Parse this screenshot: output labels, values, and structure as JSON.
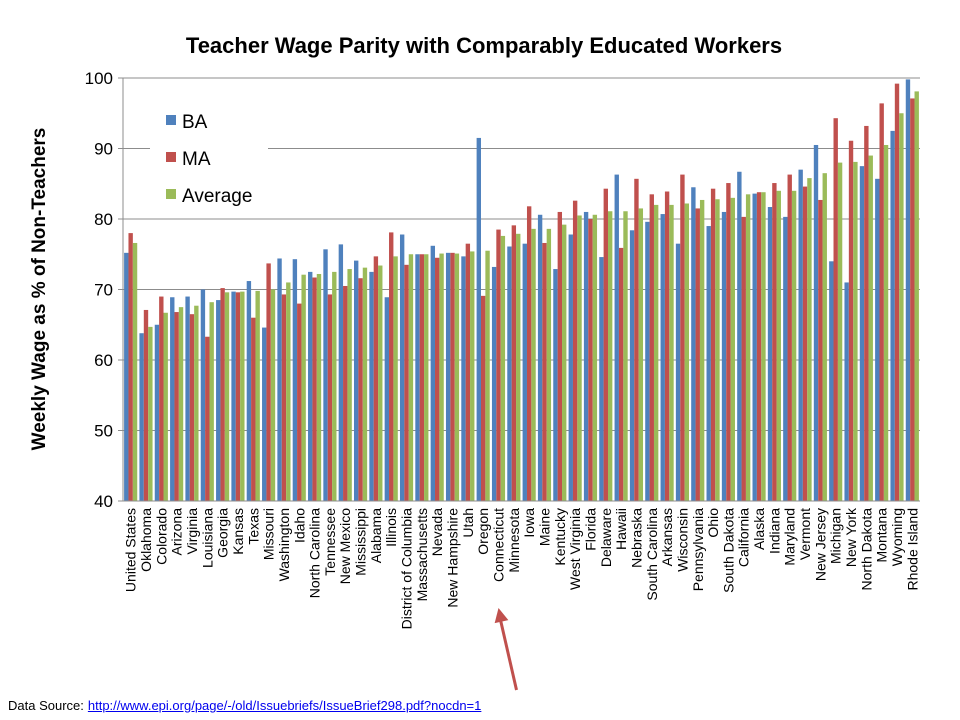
{
  "chart_data": {
    "type": "bar",
    "title": "Teacher Wage Parity with Comparably Educated Workers",
    "ylabel": "Weekly Wage as % of Non-Teachers",
    "xlabel": "",
    "ylim": [
      40,
      100
    ],
    "yticks": [
      40,
      50,
      60,
      70,
      80,
      90,
      100
    ],
    "grid": true,
    "legend_position": "top-left",
    "categories": [
      "United States",
      "Oklahoma",
      "Colorado",
      "Arizona",
      "Virginia",
      "Louisiana",
      "Georgia",
      "Kansas",
      "Texas",
      "Missouri",
      "Washington",
      "Idaho",
      "North Carolina",
      "Tennessee",
      "New Mexico",
      "Mississippi",
      "Alabama",
      "Illinois",
      "District of Columbia",
      "Massachusetts",
      "Nevada",
      "New Hampshire",
      "Utah",
      "Oregon",
      "Connecticut",
      "Minnesota",
      "Iowa",
      "Maine",
      "Kentucky",
      "West Virginia",
      "Florida",
      "Delaware",
      "Hawaii",
      "Nebraska",
      "South Carolina",
      "Arkansas",
      "Wisconsin",
      "Pennsylvania",
      "Ohio",
      "South Dakota",
      "California",
      "Alaska",
      "Indiana",
      "Maryland",
      "Vermont",
      "New Jersey",
      "Michigan",
      "New York",
      "North Dakota",
      "Montana",
      "Wyoming",
      "Rhode Island"
    ],
    "series": [
      {
        "name": "BA",
        "color": "#4F81BD",
        "values": [
          75.2,
          63.8,
          65.0,
          68.9,
          69.0,
          70.0,
          68.5,
          69.7,
          71.2,
          64.6,
          74.4,
          74.3,
          72.5,
          75.7,
          76.4,
          74.1,
          72.5,
          68.9,
          77.8,
          75.0,
          76.2,
          75.2,
          74.7,
          91.5,
          73.2,
          76.1,
          76.5,
          80.6,
          72.9,
          77.8,
          81.0,
          74.6,
          86.3,
          78.4,
          79.6,
          80.7,
          76.5,
          84.5,
          79.0,
          81.0,
          86.7,
          83.6,
          81.7,
          80.3,
          87.0,
          90.5,
          74.0,
          71.0,
          87.5,
          85.7,
          92.5,
          99.8
        ]
      },
      {
        "name": "MA",
        "color": "#C0504D",
        "values": [
          78.0,
          67.1,
          69.0,
          66.8,
          66.5,
          63.3,
          70.2,
          69.6,
          66.0,
          73.7,
          69.3,
          68.0,
          71.7,
          69.3,
          70.5,
          71.6,
          74.7,
          78.1,
          73.5,
          75.0,
          74.5,
          75.2,
          76.5,
          69.1,
          78.5,
          79.1,
          81.8,
          76.6,
          81.0,
          82.6,
          80.0,
          84.3,
          75.9,
          85.7,
          83.5,
          83.9,
          86.3,
          81.5,
          84.3,
          85.1,
          80.3,
          83.8,
          85.1,
          86.3,
          84.6,
          82.7,
          94.3,
          91.1,
          93.2,
          96.4,
          99.2,
          97.1
        ]
      },
      {
        "name": "Average",
        "color": "#9BBB59",
        "values": [
          76.6,
          64.7,
          66.7,
          67.5,
          67.7,
          68.2,
          69.6,
          69.7,
          69.8,
          70.0,
          71.0,
          72.1,
          72.2,
          72.5,
          72.9,
          73.1,
          73.4,
          74.7,
          75.0,
          75.0,
          75.1,
          75.1,
          75.4,
          75.5,
          77.6,
          77.9,
          78.6,
          78.6,
          79.2,
          80.5,
          80.6,
          81.1,
          81.1,
          81.5,
          82.0,
          82.0,
          82.2,
          82.7,
          82.8,
          83.0,
          83.5,
          83.8,
          84.0,
          84.0,
          85.8,
          86.5,
          88.0,
          88.1,
          89.0,
          90.5,
          95.0,
          98.1
        ]
      }
    ],
    "annotations": [
      {
        "type": "arrow",
        "target_category": "Connecticut",
        "color": "#C0504D"
      }
    ]
  },
  "source": {
    "label": "Data Source:",
    "url": "http://www.epi.org/page/-/old/Issuebriefs/IssueBrief298.pdf?nocdn=1"
  }
}
